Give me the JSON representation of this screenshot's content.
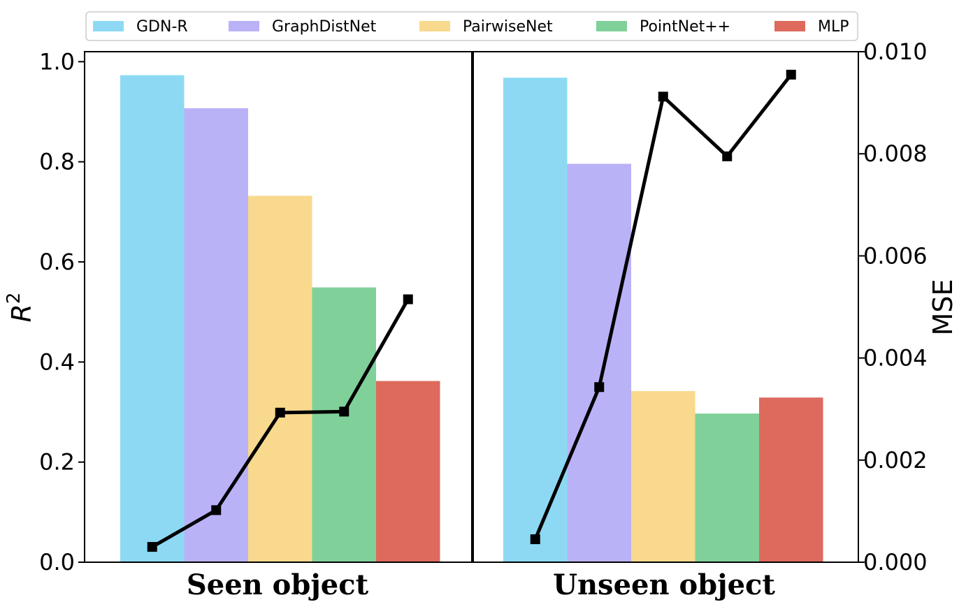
{
  "chart_data": {
    "type": "bar",
    "categories": [
      "Seen object",
      "Unseen object"
    ],
    "series": [
      {
        "name": "GDN-R",
        "values": [
          0.973,
          0.968
        ],
        "color": "#8dd9f4"
      },
      {
        "name": "GraphDistNet",
        "values": [
          0.907,
          0.796
        ],
        "color": "#bab2f7"
      },
      {
        "name": "PairwiseNet",
        "values": [
          0.732,
          0.342
        ],
        "color": "#f8d98d"
      },
      {
        "name": "PointNet++",
        "values": [
          0.549,
          0.297
        ],
        "color": "#80d09a"
      },
      {
        "name": "MLP",
        "values": [
          0.362,
          0.329
        ],
        "color": "#dd6a5d"
      }
    ],
    "ylabel": "R",
    "ylabel_superscript": "2",
    "ylim": [
      0,
      1.02
    ],
    "yticks": [
      "0.0",
      "0.2",
      "0.4",
      "0.6",
      "0.8",
      "1.0"
    ],
    "secondary_axis": {
      "label": "MSE",
      "ylim": [
        0,
        0.01
      ],
      "yticks": [
        "0.000",
        "0.002",
        "0.004",
        "0.006",
        "0.008",
        "0.010"
      ],
      "line_color": "#000000",
      "marker": "square",
      "series": [
        {
          "group": "Seen object",
          "values": [
            0.0003,
            0.00102,
            0.00293,
            0.00295,
            0.00515
          ]
        },
        {
          "group": "Unseen object",
          "values": [
            0.00045,
            0.00343,
            0.00912,
            0.00795,
            0.00955
          ]
        }
      ]
    },
    "legend_position": "top",
    "grid": false
  }
}
